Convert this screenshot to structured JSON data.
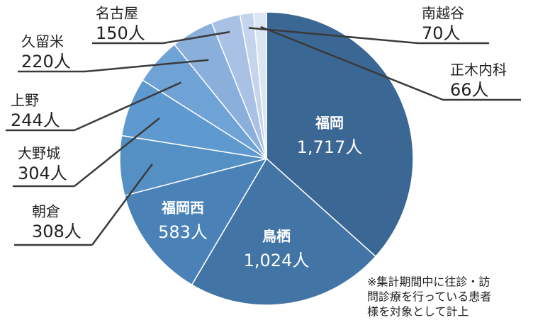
{
  "chart_data": {
    "type": "pie",
    "categories": [
      "福岡",
      "鳥栖",
      "福岡西",
      "朝倉",
      "大野城",
      "上野",
      "久留米",
      "名古屋",
      "南越谷",
      "正木内科"
    ],
    "values": [
      1717,
      1024,
      583,
      308,
      304,
      244,
      220,
      150,
      70,
      66
    ],
    "value_labels": [
      "1,717人",
      "1,024人",
      "583人",
      "308人",
      "304人",
      "244人",
      "220人",
      "150人",
      "70人",
      "66人"
    ],
    "colors": [
      "#3b6794",
      "#4275a6",
      "#4a82b8",
      "#5590c4",
      "#5e9ad0",
      "#6fa3d6",
      "#8aafdb",
      "#a8c1e4",
      "#c4d4ec",
      "#dce5f2"
    ],
    "note": [
      "※集計期間中に往診・訪",
      "問診療を行っている患者",
      "様を対象として計上"
    ]
  }
}
